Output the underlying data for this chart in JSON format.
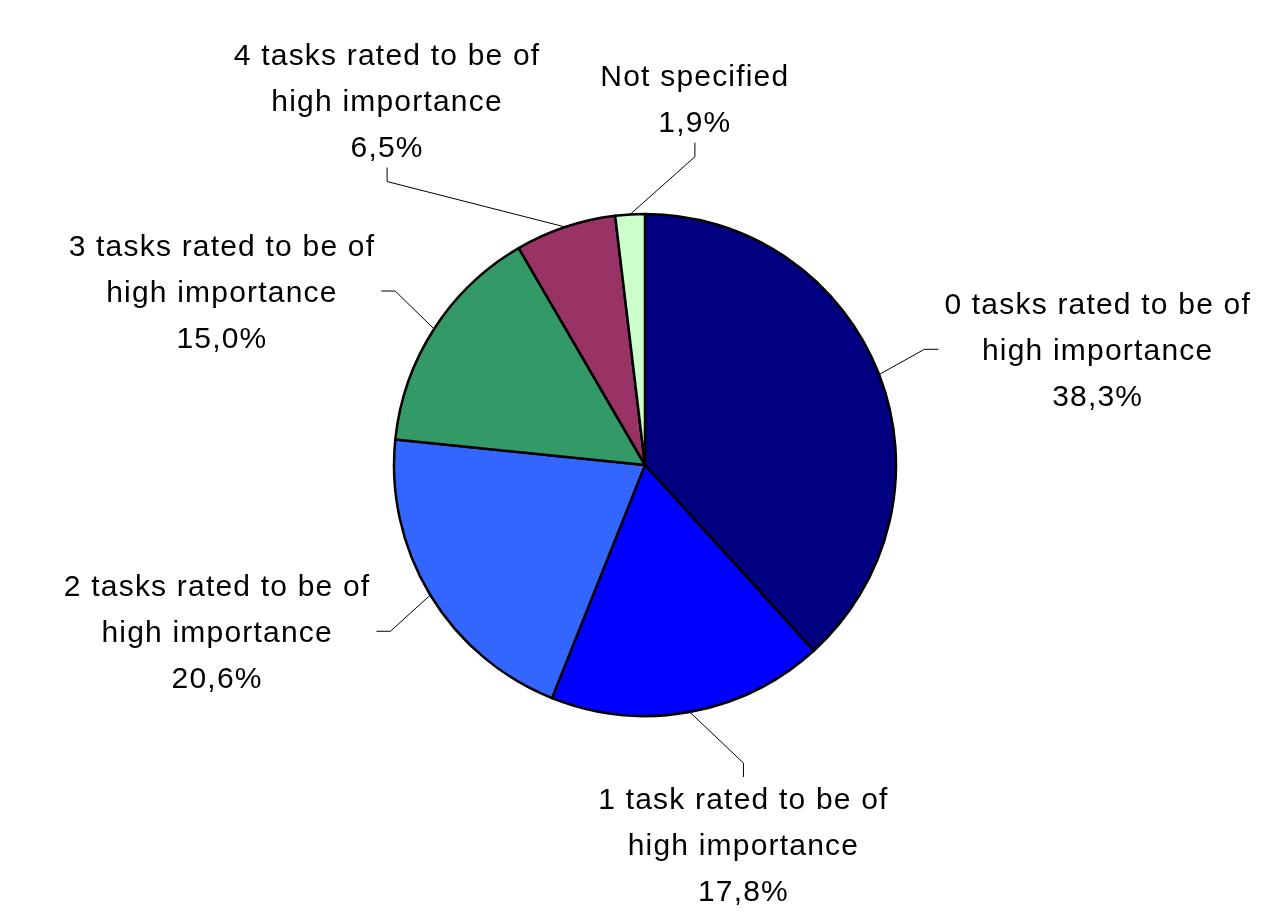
{
  "chart_data": {
    "type": "pie",
    "categories": [
      "0 tasks rated to be of high importance",
      "1 task rated to be of high importance",
      "2 tasks rated to be of high importance",
      "3 tasks rated to be of high importance",
      "4 tasks rated to be of high importance",
      "Not specified"
    ],
    "values": [
      38.3,
      17.8,
      20.6,
      15.0,
      6.5,
      1.9
    ],
    "value_labels": [
      "38,3%",
      "17,8%",
      "20,6%",
      "15,0%",
      "6,5%",
      "1,9%"
    ],
    "colors": [
      "#000080",
      "#0000ff",
      "#3366ff",
      "#339966",
      "#993366",
      "#ccffcc"
    ]
  }
}
